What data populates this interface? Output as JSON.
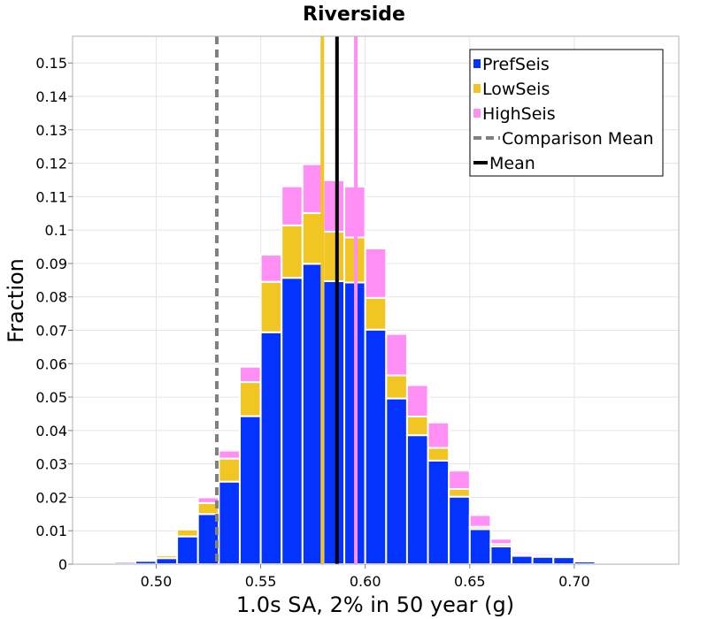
{
  "chart_data": {
    "type": "bar",
    "title": "Riverside",
    "xlabel": "1.0s SA, 2% in 50 year (g)",
    "ylabel": "Fraction",
    "xlim": [
      0.46,
      0.75
    ],
    "ylim": [
      0,
      0.158
    ],
    "bin_width": 0.01,
    "xticks": [
      0.5,
      0.55,
      0.6,
      0.65,
      0.7
    ],
    "xtick_labels": [
      "0.50",
      "0.55",
      "0.60",
      "0.65",
      "0.70"
    ],
    "yticks": [
      0,
      0.01,
      0.02,
      0.03,
      0.04,
      0.05,
      0.06,
      0.07,
      0.08,
      0.09,
      0.1,
      0.11,
      0.12,
      0.13,
      0.14,
      0.15
    ],
    "ytick_labels": [
      "0",
      "0.01",
      "0.02",
      "0.03",
      "0.04",
      "0.05",
      "0.06",
      "0.07",
      "0.08",
      "0.09",
      "0.1",
      "0.11",
      "0.12",
      "0.13",
      "0.14",
      "0.15"
    ],
    "grid": true,
    "legend_position": "top-right",
    "bin_centers": [
      0.475,
      0.485,
      0.495,
      0.505,
      0.515,
      0.525,
      0.535,
      0.545,
      0.555,
      0.565,
      0.575,
      0.585,
      0.595,
      0.605,
      0.615,
      0.625,
      0.635,
      0.645,
      0.655,
      0.665,
      0.675,
      0.685,
      0.695,
      0.705,
      0.715
    ],
    "series": [
      {
        "name": "PrefSeis",
        "color": "#0433ff",
        "values": [
          0.0002,
          0.0006,
          0.001,
          0.0018,
          0.0083,
          0.015,
          0.0247,
          0.0443,
          0.0694,
          0.0857,
          0.0899,
          0.0847,
          0.0843,
          0.0702,
          0.0496,
          0.0386,
          0.031,
          0.0202,
          0.0105,
          0.0053,
          0.0025,
          0.0022,
          0.0021,
          0.0008,
          0.0001
        ]
      },
      {
        "name": "LowSeis",
        "color": "#f1c622",
        "values": [
          0.0,
          0.0,
          0.0001,
          0.0008,
          0.0021,
          0.0033,
          0.0069,
          0.0102,
          0.0151,
          0.0157,
          0.0152,
          0.0148,
          0.0135,
          0.0095,
          0.0069,
          0.0056,
          0.0038,
          0.0023,
          0.0007,
          0.0007,
          0.0006,
          0.0003,
          0.0003,
          0.0001,
          0.0
        ]
      },
      {
        "name": "HighSeis",
        "color": "#ff8ff4",
        "values": [
          0.0,
          0.0,
          0.0,
          0.0,
          0.0004,
          0.0017,
          0.0024,
          0.0046,
          0.0081,
          0.0117,
          0.0146,
          0.0154,
          0.0152,
          0.0148,
          0.0124,
          0.0094,
          0.0076,
          0.0055,
          0.0035,
          0.0016,
          0.0006,
          0.0006,
          0.0005,
          0.0002,
          0.0
        ]
      }
    ],
    "vertical_lines": [
      {
        "name": "Comparison Mean",
        "x": 0.529,
        "color": "#808080",
        "style": "dashed"
      },
      {
        "name": "Mean",
        "x": 0.5865,
        "color": "#000000",
        "style": "solid"
      }
    ],
    "extra_lines": [
      {
        "series": "LowSeis",
        "x": 0.5795,
        "color": "#f1c622"
      },
      {
        "series": "HighSeis",
        "x": 0.5955,
        "color": "#ff8ff4"
      }
    ],
    "legend": [
      {
        "label": "PrefSeis",
        "kind": "box",
        "color": "#0433ff"
      },
      {
        "label": "LowSeis",
        "kind": "box",
        "color": "#f1c622"
      },
      {
        "label": "HighSeis",
        "kind": "box",
        "color": "#ff8ff4"
      },
      {
        "label": "Comparison Mean",
        "kind": "dash",
        "color": "#808080"
      },
      {
        "label": "Mean",
        "kind": "line",
        "color": "#000000"
      }
    ]
  }
}
